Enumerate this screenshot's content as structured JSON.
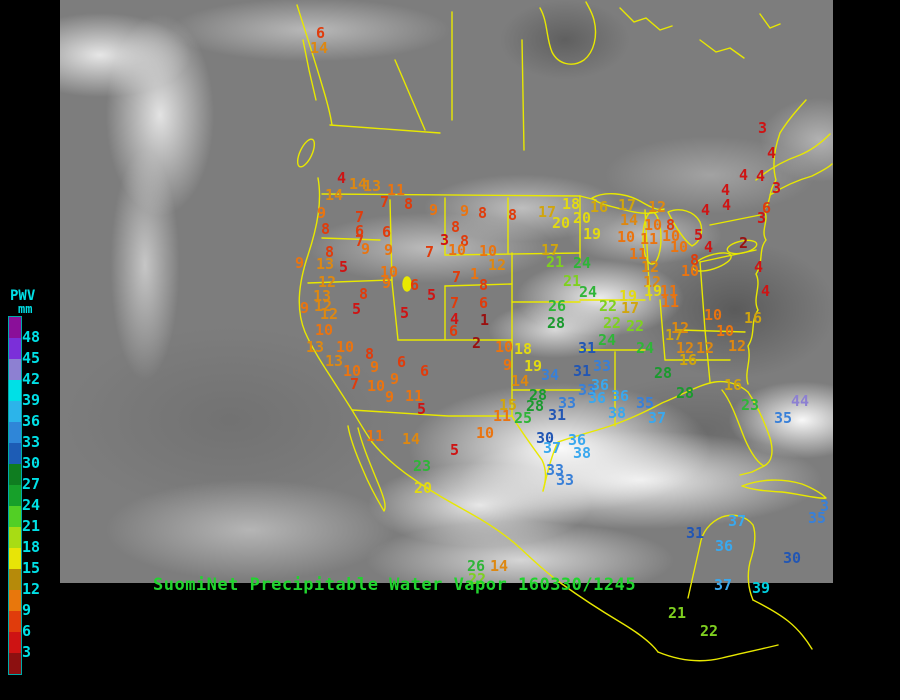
{
  "title": {
    "text": "SuomiNet Precipitable Water Vapor 160330/1245",
    "color": "#21d42e"
  },
  "legend": {
    "heading": "PWV",
    "unit": "mm",
    "text_color": "#00e0e6",
    "labels": [
      48,
      45,
      42,
      39,
      36,
      33,
      30,
      27,
      24,
      21,
      18,
      15,
      12,
      9,
      6,
      3
    ],
    "colors": [
      "#8a0f99",
      "#7b2fd9",
      "#8d80d2",
      "#00e0e6",
      "#2cb4ea",
      "#2f86d8",
      "#1d5cb5",
      "#0f7d20",
      "#17a02a",
      "#52cf25",
      "#a8dc14",
      "#e8e407",
      "#b68a0a",
      "#e8770c",
      "#e03c0c",
      "#ce1313",
      "#8c1010"
    ]
  },
  "map_outline_color": "#e8e800",
  "value_bands": [
    [
      48,
      "#8a0f99"
    ],
    [
      45,
      "#7b2fd9"
    ],
    [
      42,
      "#8d80d2"
    ],
    [
      39,
      "#00d0e0"
    ],
    [
      36,
      "#3aa8ee"
    ],
    [
      33,
      "#3980d8"
    ],
    [
      30,
      "#2256b4"
    ],
    [
      27,
      "#1a9a2e"
    ],
    [
      23,
      "#2fb538"
    ],
    [
      21,
      "#7fd020"
    ],
    [
      18,
      "#e2da12"
    ],
    [
      15,
      "#d0a50e"
    ],
    [
      12,
      "#dd8812"
    ],
    [
      9,
      "#ea7410"
    ],
    [
      6,
      "#e03c0c"
    ],
    [
      3,
      "#ce1414"
    ],
    [
      0,
      "#9a1010"
    ]
  ],
  "stations": [
    [
      6,
      316,
      26
    ],
    [
      14,
      310,
      41
    ],
    [
      4,
      337,
      171
    ],
    [
      14,
      349,
      177
    ],
    [
      13,
      363,
      179
    ],
    [
      11,
      387,
      183
    ],
    [
      14,
      325,
      188
    ],
    [
      9,
      317,
      206
    ],
    [
      8,
      321,
      222
    ],
    [
      7,
      380,
      195
    ],
    [
      8,
      404,
      197
    ],
    [
      9,
      429,
      203
    ],
    [
      9,
      460,
      204
    ],
    [
      8,
      478,
      206
    ],
    [
      8,
      508,
      208
    ],
    [
      17,
      538,
      205
    ],
    [
      18,
      562,
      197
    ],
    [
      16,
      590,
      200
    ],
    [
      17,
      618,
      198
    ],
    [
      12,
      648,
      200
    ],
    [
      20,
      573,
      211
    ],
    [
      20,
      552,
      216
    ],
    [
      14,
      620,
      213
    ],
    [
      10,
      644,
      218
    ],
    [
      8,
      666,
      218
    ],
    [
      19,
      583,
      227
    ],
    [
      17,
      541,
      243
    ],
    [
      10,
      617,
      230
    ],
    [
      11,
      640,
      232
    ],
    [
      10,
      662,
      229
    ],
    [
      10,
      670,
      240
    ],
    [
      11,
      629,
      247
    ],
    [
      12,
      641,
      260
    ],
    [
      10,
      681,
      264
    ],
    [
      12,
      643,
      275
    ],
    [
      19,
      644,
      284
    ],
    [
      11,
      660,
      284
    ],
    [
      7,
      355,
      210
    ],
    [
      6,
      355,
      224
    ],
    [
      7,
      355,
      234
    ],
    [
      9,
      361,
      242
    ],
    [
      6,
      382,
      225
    ],
    [
      9,
      384,
      243
    ],
    [
      3,
      440,
      233
    ],
    [
      8,
      451,
      220
    ],
    [
      8,
      460,
      234
    ],
    [
      7,
      425,
      245
    ],
    [
      10,
      448,
      243
    ],
    [
      10,
      479,
      244
    ],
    [
      12,
      488,
      258
    ],
    [
      3,
      758,
      121
    ],
    [
      4,
      767,
      146
    ],
    [
      4,
      739,
      168
    ],
    [
      4,
      756,
      169
    ],
    [
      4,
      721,
      183
    ],
    [
      3,
      772,
      181
    ],
    [
      4,
      722,
      198
    ],
    [
      4,
      701,
      203
    ],
    [
      6,
      762,
      201
    ],
    [
      3,
      757,
      211
    ],
    [
      5,
      694,
      228
    ],
    [
      4,
      704,
      240
    ],
    [
      2,
      739,
      236
    ],
    [
      8,
      690,
      253
    ],
    [
      4,
      754,
      260
    ],
    [
      4,
      761,
      284
    ],
    [
      10,
      704,
      308
    ],
    [
      10,
      380,
      265
    ],
    [
      9,
      382,
      276
    ],
    [
      6,
      410,
      278
    ],
    [
      7,
      452,
      270
    ],
    [
      1,
      470,
      267,
      "#ea7410"
    ],
    [
      8,
      479,
      278
    ],
    [
      7,
      450,
      296
    ],
    [
      6,
      479,
      296
    ],
    [
      4,
      450,
      312
    ],
    [
      1,
      480,
      313
    ],
    [
      6,
      449,
      324
    ],
    [
      2,
      472,
      336
    ],
    [
      10,
      495,
      340
    ],
    [
      18,
      514,
      342
    ],
    [
      5,
      400,
      306
    ],
    [
      5,
      427,
      288
    ],
    [
      8,
      325,
      245
    ],
    [
      9,
      295,
      256
    ],
    [
      13,
      316,
      257
    ],
    [
      5,
      339,
      260
    ],
    [
      12,
      318,
      275
    ],
    [
      13,
      313,
      289
    ],
    [
      12,
      314,
      299
    ],
    [
      9,
      300,
      301
    ],
    [
      12,
      320,
      307
    ],
    [
      10,
      315,
      323
    ],
    [
      13,
      306,
      340
    ],
    [
      10,
      336,
      340
    ],
    [
      13,
      325,
      354
    ],
    [
      10,
      343,
      364
    ],
    [
      7,
      350,
      377
    ],
    [
      8,
      365,
      347
    ],
    [
      9,
      370,
      360
    ],
    [
      10,
      367,
      379
    ],
    [
      9,
      390,
      372
    ],
    [
      9,
      385,
      390
    ],
    [
      11,
      405,
      389
    ],
    [
      6,
      397,
      355
    ],
    [
      6,
      420,
      364
    ],
    [
      5,
      417,
      402
    ],
    [
      5,
      352,
      302
    ],
    [
      8,
      359,
      287
    ],
    [
      11,
      366,
      429
    ],
    [
      14,
      402,
      432
    ],
    [
      23,
      413,
      459
    ],
    [
      20,
      414,
      481
    ],
    [
      5,
      450,
      443
    ],
    [
      10,
      476,
      426
    ],
    [
      19,
      524,
      359
    ],
    [
      9,
      503,
      358
    ],
    [
      14,
      511,
      374
    ],
    [
      15,
      499,
      398
    ],
    [
      11,
      493,
      409
    ],
    [
      25,
      514,
      411
    ],
    [
      28,
      529,
      388
    ],
    [
      28,
      526,
      399
    ],
    [
      31,
      548,
      408
    ],
    [
      34,
      541,
      368
    ],
    [
      33,
      558,
      396
    ],
    [
      33,
      578,
      383
    ],
    [
      31,
      573,
      364
    ],
    [
      31,
      578,
      341
    ],
    [
      33,
      593,
      359
    ],
    [
      36,
      591,
      378
    ],
    [
      36,
      588,
      391
    ],
    [
      36,
      611,
      389
    ],
    [
      38,
      608,
      406
    ],
    [
      35,
      636,
      396
    ],
    [
      37,
      648,
      411
    ],
    [
      30,
      536,
      431
    ],
    [
      37,
      543,
      441
    ],
    [
      36,
      568,
      433
    ],
    [
      38,
      573,
      446
    ],
    [
      33,
      546,
      463
    ],
    [
      33,
      556,
      473
    ],
    [
      21,
      546,
      255
    ],
    [
      24,
      573,
      256
    ],
    [
      21,
      563,
      274
    ],
    [
      24,
      579,
      285
    ],
    [
      26,
      548,
      299
    ],
    [
      22,
      599,
      299
    ],
    [
      19,
      619,
      289
    ],
    [
      17,
      621,
      301
    ],
    [
      28,
      547,
      316
    ],
    [
      24,
      598,
      333
    ],
    [
      22,
      603,
      316
    ],
    [
      22,
      626,
      319
    ],
    [
      24,
      636,
      341
    ],
    [
      28,
      654,
      366
    ],
    [
      28,
      676,
      386
    ],
    [
      16,
      679,
      353
    ],
    [
      12,
      671,
      321
    ],
    [
      17,
      665,
      328
    ],
    [
      12,
      676,
      341
    ],
    [
      11,
      661,
      295
    ],
    [
      10,
      716,
      324
    ],
    [
      16,
      744,
      311
    ],
    [
      12,
      696,
      341
    ],
    [
      12,
      728,
      339
    ],
    [
      16,
      724,
      378
    ],
    [
      23,
      741,
      398
    ],
    [
      44,
      791,
      394
    ],
    [
      35,
      774,
      411
    ],
    [
      26,
      467,
      559
    ],
    [
      14,
      490,
      559
    ],
    [
      22,
      468,
      572
    ],
    [
      31,
      686,
      526
    ],
    [
      37,
      728,
      514
    ],
    [
      36,
      715,
      539
    ],
    [
      3,
      820,
      499,
      "#3980d8"
    ],
    [
      35,
      808,
      511
    ],
    [
      30,
      783,
      551
    ],
    [
      37,
      714,
      578
    ],
    [
      39,
      752,
      581
    ],
    [
      21,
      668,
      606
    ],
    [
      22,
      700,
      624
    ]
  ]
}
